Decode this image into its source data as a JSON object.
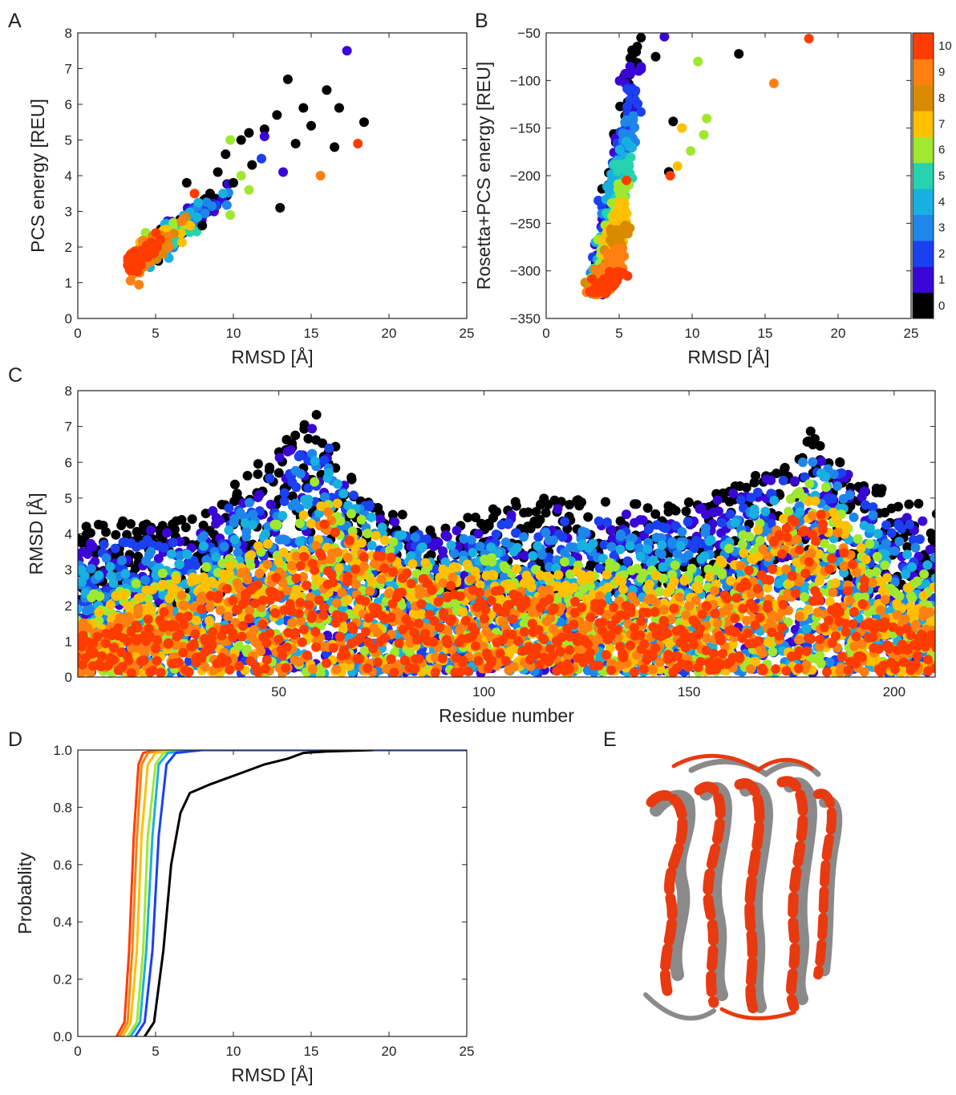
{
  "panels": {
    "A": "A",
    "B": "B",
    "C": "C",
    "D": "D",
    "E": "E"
  },
  "colors": {
    "0": "#000000",
    "1": "#3a06d6",
    "2": "#1a40f0",
    "3": "#1e86ea",
    "4": "#18b0e0",
    "5": "#26d2b0",
    "6": "#a0e830",
    "7": "#ffc000",
    "8": "#d88a00",
    "9": "#ff8010",
    "10": "#ff3c00"
  },
  "structure_colors": {
    "model": "#e83a10",
    "reference": "#8a8a8a"
  },
  "chart_data": [
    {
      "type": "scatter",
      "panel": "A",
      "xlabel": "RMSD [Å]",
      "ylabel": "PCS energy [REU]",
      "xlim": [
        0,
        25
      ],
      "ylim": [
        0,
        8
      ],
      "xticks": [
        0,
        5,
        10,
        15,
        20,
        25
      ],
      "yticks": [
        0,
        1,
        2,
        3,
        4,
        5,
        6,
        7,
        8
      ],
      "series": [
        {
          "class": 0,
          "points": [
            [
              9.5,
              4.6
            ],
            [
              10.5,
              5.0
            ],
            [
              11.2,
              4.3
            ],
            [
              12.0,
              5.3
            ],
            [
              12.8,
              5.7
            ],
            [
              13.5,
              6.7
            ],
            [
              14.5,
              5.9
            ],
            [
              16.0,
              6.4
            ],
            [
              16.8,
              5.9
            ],
            [
              18.4,
              5.5
            ],
            [
              13.0,
              3.1
            ],
            [
              9.0,
              4.1
            ],
            [
              10.0,
              3.8
            ],
            [
              8.5,
              3.5
            ],
            [
              14.0,
              4.9
            ],
            [
              15.0,
              5.4
            ],
            [
              16.5,
              4.8
            ],
            [
              11.0,
              5.2
            ],
            [
              8.0,
              2.6
            ],
            [
              7.0,
              3.8
            ]
          ]
        },
        {
          "class": 1,
          "points": [
            [
              17.3,
              7.5
            ],
            [
              12.0,
              5.1
            ],
            [
              13.2,
              4.1
            ]
          ]
        },
        {
          "class": 6,
          "points": [
            [
              9.8,
              2.9
            ],
            [
              9.8,
              5.0
            ],
            [
              10.5,
              4.0
            ],
            [
              11.0,
              3.6
            ]
          ]
        },
        {
          "class": 9,
          "points": [
            [
              15.6,
              4.0
            ]
          ]
        },
        {
          "class": 10,
          "points": [
            [
              18.0,
              4.9
            ],
            [
              7.5,
              3.5
            ]
          ]
        }
      ]
    },
    {
      "type": "scatter",
      "panel": "B",
      "xlabel": "RMSD [Å]",
      "ylabel": "Rosetta+PCS energy [REU]",
      "xlim": [
        0,
        25
      ],
      "ylim": [
        -350,
        -50
      ],
      "xticks": [
        0,
        5,
        10,
        15,
        20,
        25
      ],
      "yticks": [
        -350,
        -300,
        -250,
        -200,
        -150,
        -100,
        -50
      ],
      "colorbar": {
        "ticks": [
          "0",
          "1",
          "2",
          "3",
          "4",
          "5",
          "6",
          "7",
          "8",
          "9",
          "10"
        ]
      },
      "series": [
        {
          "class": 0,
          "points": [
            [
              13.2,
              -72
            ],
            [
              8.7,
              -143
            ],
            [
              8.4,
              -196
            ],
            [
              6.5,
              -55
            ],
            [
              7.5,
              -75
            ]
          ]
        },
        {
          "class": 1,
          "points": [
            [
              8.1,
              -54
            ]
          ]
        },
        {
          "class": 6,
          "points": [
            [
              10.4,
              -80
            ],
            [
              11.0,
              -140
            ],
            [
              10.8,
              -157
            ],
            [
              9.9,
              -174
            ]
          ]
        },
        {
          "class": 7,
          "points": [
            [
              9.3,
              -150
            ],
            [
              9.0,
              -190
            ]
          ]
        },
        {
          "class": 9,
          "points": [
            [
              15.6,
              -103
            ]
          ]
        },
        {
          "class": 10,
          "points": [
            [
              18.0,
              -56
            ],
            [
              8.5,
              -200
            ],
            [
              5.5,
              -205
            ]
          ]
        }
      ]
    },
    {
      "type": "scatter",
      "panel": "C",
      "xlabel": "Residue number",
      "ylabel": "RMSD [Å]",
      "xlim": [
        1,
        210
      ],
      "ylim": [
        0,
        8
      ],
      "xticks": [
        50,
        100,
        150,
        200
      ],
      "yticks": [
        0,
        1,
        2,
        3,
        4,
        5,
        6,
        7,
        8
      ],
      "class_peaks": [
        {
          "class": 0,
          "residues": [
            5,
            28,
            40,
            59,
            70,
            85,
            110,
            125,
            145,
            160,
            175,
            180,
            200
          ],
          "rmsd": [
            4.3,
            4.5,
            5.5,
            7.5,
            5.3,
            4.2,
            5.0,
            5.0,
            4.8,
            5.5,
            6.0,
            6.9,
            5.0
          ]
        },
        {
          "class": 10,
          "residues": [
            5,
            25,
            55,
            60,
            85,
            115,
            135,
            155,
            180,
            200
          ],
          "rmsd": [
            1.2,
            2.0,
            3.2,
            4.5,
            2.8,
            2.2,
            2.0,
            2.0,
            5.0,
            1.5
          ]
        }
      ]
    },
    {
      "type": "line",
      "panel": "D",
      "xlabel": "RMSD [Å]",
      "ylabel": "Probablity",
      "xlim": [
        0,
        25
      ],
      "ylim": [
        0.0,
        1.0
      ],
      "xticks": [
        0,
        5,
        10,
        15,
        20,
        25
      ],
      "yticks": [
        0.0,
        0.2,
        0.4,
        0.6,
        0.8,
        1.0
      ],
      "series": [
        {
          "class": 10,
          "x": [
            2.5,
            3.0,
            3.3,
            3.6,
            3.9,
            4.2,
            5.0,
            25
          ],
          "y": [
            0.0,
            0.05,
            0.3,
            0.7,
            0.95,
            0.99,
            1.0,
            1.0
          ]
        },
        {
          "class": 9,
          "x": [
            2.7,
            3.2,
            3.5,
            3.8,
            4.1,
            4.5,
            5.5,
            25
          ],
          "y": [
            0.0,
            0.05,
            0.3,
            0.7,
            0.95,
            0.99,
            1.0,
            1.0
          ]
        },
        {
          "class": 7,
          "x": [
            2.9,
            3.4,
            3.8,
            4.1,
            4.5,
            5.0,
            6.0,
            25
          ],
          "y": [
            0.0,
            0.05,
            0.3,
            0.7,
            0.95,
            0.99,
            1.0,
            1.0
          ]
        },
        {
          "class": 6,
          "x": [
            3.2,
            3.8,
            4.2,
            4.5,
            5.0,
            5.5,
            7.0,
            25
          ],
          "y": [
            0.0,
            0.05,
            0.3,
            0.7,
            0.95,
            0.99,
            1.0,
            1.0
          ]
        },
        {
          "class": 4,
          "x": [
            3.4,
            4.0,
            4.4,
            4.8,
            5.2,
            5.8,
            7.5,
            25
          ],
          "y": [
            0.0,
            0.05,
            0.3,
            0.7,
            0.95,
            0.99,
            1.0,
            1.0
          ]
        },
        {
          "class": 2,
          "x": [
            3.7,
            4.3,
            4.8,
            5.2,
            5.7,
            6.3,
            8.0,
            25
          ],
          "y": [
            0.0,
            0.05,
            0.3,
            0.7,
            0.95,
            0.99,
            1.0,
            1.0
          ]
        },
        {
          "class": 0,
          "x": [
            4.3,
            4.9,
            5.5,
            6.0,
            6.6,
            7.2,
            8.5,
            10.5,
            12.0,
            13.5,
            14.5,
            16.0,
            19.0
          ],
          "y": [
            0.0,
            0.05,
            0.3,
            0.6,
            0.78,
            0.85,
            0.88,
            0.92,
            0.95,
            0.97,
            0.99,
            0.995,
            1.0
          ]
        }
      ]
    }
  ]
}
